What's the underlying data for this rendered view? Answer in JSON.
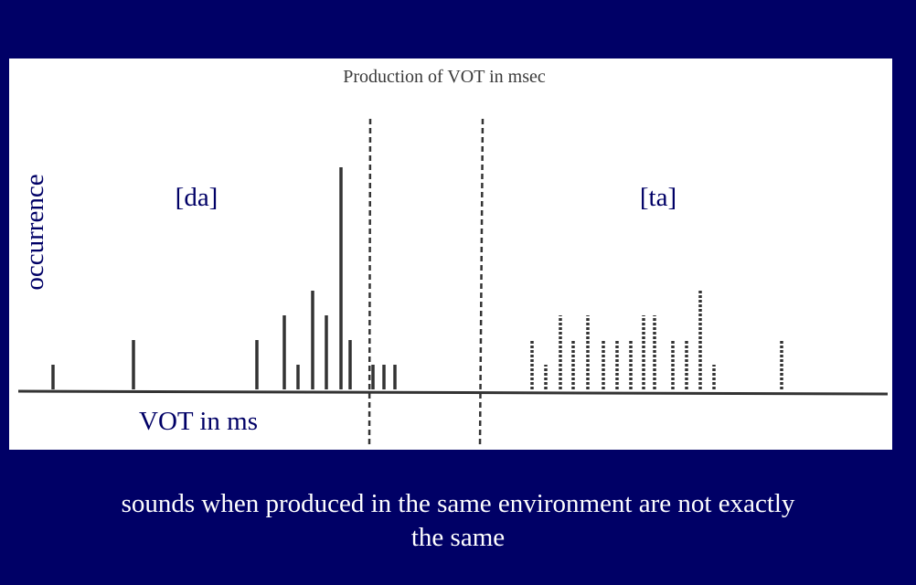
{
  "chart_data": {
    "type": "bar",
    "title": "Production of VOT in msec",
    "xlabel": "VOT in ms",
    "ylabel": "occurrence",
    "groups": [
      {
        "name": "[da]",
        "values": [
          1,
          2,
          0,
          2,
          3,
          1,
          4,
          3,
          9,
          2,
          1,
          1,
          1
        ]
      },
      {
        "name": "[ta]",
        "values": [
          2,
          1,
          3,
          2,
          3,
          2,
          2,
          2,
          3,
          3,
          2,
          2,
          4,
          1,
          2
        ]
      }
    ],
    "grid": false,
    "colors": {
      "background": "#000066",
      "panel": "#ffffff",
      "ink": "#333333",
      "label": "#000066",
      "caption": "#ffffff"
    }
  },
  "caption": {
    "line1": "sounds when produced in the same environment are not exactly",
    "line2": "the same"
  }
}
